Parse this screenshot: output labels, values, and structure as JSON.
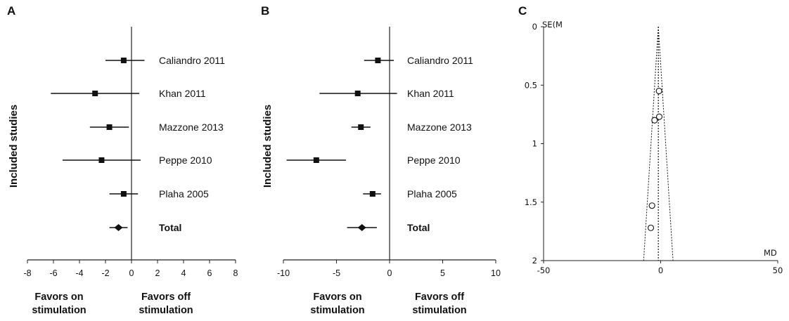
{
  "chart_data": [
    {
      "type": "forest",
      "panel": "A",
      "ylabel": "Included studies",
      "xlim": [
        -8,
        8
      ],
      "xticks": [
        -8,
        -6,
        -4,
        -2,
        0,
        2,
        4,
        6,
        8
      ],
      "xtick_labels": [
        "-8",
        "-6",
        "-4",
        "-2",
        "0",
        "2",
        "4",
        "6",
        "8"
      ],
      "favors_left": [
        "Favors on",
        "stimulation"
      ],
      "favors_right": [
        "Favors off",
        "stimulation"
      ],
      "studies": [
        {
          "label": "Caliandro 2011",
          "estimate": -0.6,
          "ci": [
            -2.0,
            1.0
          ]
        },
        {
          "label": "Khan 2011",
          "estimate": -2.8,
          "ci": [
            -6.2,
            0.6
          ]
        },
        {
          "label": "Mazzone 2013",
          "estimate": -1.7,
          "ci": [
            -3.2,
            -0.2
          ]
        },
        {
          "label": "Peppe 2010",
          "estimate": -2.3,
          "ci": [
            -5.3,
            0.7
          ]
        },
        {
          "label": "Plaha 2005",
          "estimate": -0.6,
          "ci": [
            -1.7,
            0.5
          ]
        }
      ],
      "total": {
        "label": "Total",
        "estimate": -1.0,
        "ci": [
          -1.7,
          -0.3
        ]
      }
    },
    {
      "type": "forest",
      "panel": "B",
      "ylabel": "Included studies",
      "xlim": [
        -10,
        10
      ],
      "xticks": [
        -10,
        -5,
        0,
        5,
        10
      ],
      "xtick_labels": [
        "-10",
        "-5",
        "0",
        "5",
        "10"
      ],
      "favors_left": [
        "Favors on",
        "stimulation"
      ],
      "favors_right": [
        "Favors off",
        "stimulation"
      ],
      "studies": [
        {
          "label": "Caliandro 2011",
          "estimate": -1.1,
          "ci": [
            -2.4,
            0.4
          ]
        },
        {
          "label": "Khan 2011",
          "estimate": -3.0,
          "ci": [
            -6.6,
            0.7
          ]
        },
        {
          "label": "Mazzone 2013",
          "estimate": -2.7,
          "ci": [
            -3.6,
            -1.8
          ]
        },
        {
          "label": "Peppe 2010",
          "estimate": -6.9,
          "ci": [
            -9.7,
            -4.1
          ]
        },
        {
          "label": "Plaha 2005",
          "estimate": -1.6,
          "ci": [
            -2.5,
            -0.8
          ]
        }
      ],
      "total": {
        "label": "Total",
        "estimate": -2.6,
        "ci": [
          -4.0,
          -1.2
        ]
      }
    },
    {
      "type": "funnel",
      "panel": "C",
      "ylabel": "SE(M",
      "xlabel": "MD",
      "xlim": [
        -50,
        50
      ],
      "ylim": [
        0,
        2
      ],
      "y_reversed": true,
      "xticks": [
        -50,
        0,
        50
      ],
      "xtick_labels": [
        "-50",
        "0",
        "50"
      ],
      "yticks": [
        0,
        0.5,
        1,
        1.5,
        2
      ],
      "ytick_labels": [
        "0",
        "0.5",
        "1",
        "1.5",
        "2"
      ],
      "center": -1.0,
      "points": [
        {
          "x": -0.7,
          "y": 0.55
        },
        {
          "x": -0.6,
          "y": 0.77
        },
        {
          "x": -2.6,
          "y": 0.8
        },
        {
          "x": -3.7,
          "y": 1.53
        },
        {
          "x": -4.2,
          "y": 1.72
        }
      ]
    }
  ]
}
